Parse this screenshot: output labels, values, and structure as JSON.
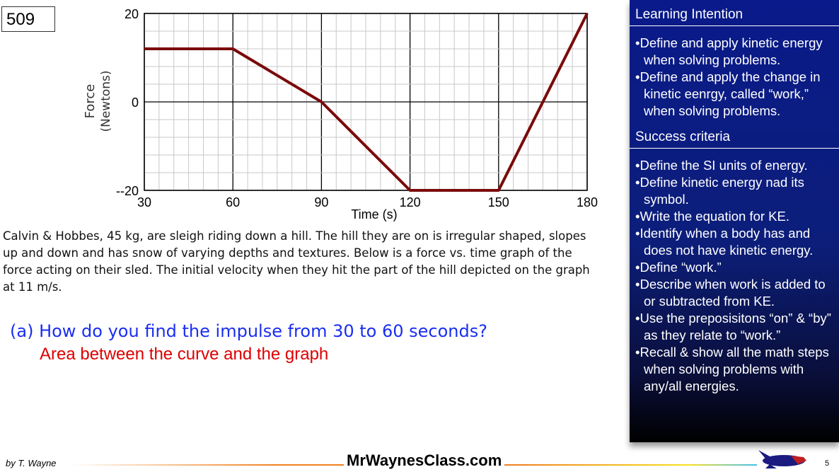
{
  "slide_number": "509",
  "chart_data": {
    "type": "line",
    "title": "",
    "xlabel": "Time (s)",
    "ylabel": "Force",
    "ylabel_sub": "(Newtons)",
    "xlim": [
      30,
      180
    ],
    "ylim": [
      -20,
      20
    ],
    "x_ticks": [
      30,
      60,
      90,
      120,
      150,
      180
    ],
    "y_tick_labels": [
      "20",
      "0",
      "--20"
    ],
    "y_ticks": [
      20,
      0,
      -20
    ],
    "grid": true,
    "line_color": "#7a0a0a",
    "x": [
      30,
      60,
      90,
      120,
      150,
      180
    ],
    "y": [
      12,
      12,
      0,
      -20,
      -20,
      20
    ]
  },
  "problem_text": "Calvin & Hobbes, 45 kg, are sleigh riding down a hill. The hill they are on is irregular shaped, slopes up and down and has snow of varying depths and textures. Below is a force vs. time graph of the force acting on their sled. The initial velocity when they hit the part of the hill depicted on the graph at 11 m/s.",
  "question": "(a)  How do you find the impulse from 30 to 60 seconds?",
  "answer": "Area between the curve and the graph",
  "panel": {
    "learning_title": "Learning Intention",
    "learning": [
      "Define and apply kinetic energy  when solving problems.",
      "Define and apply the change in kinetic eenrgy, called “work,” when solving problems."
    ],
    "success_title": "Success criteria",
    "success": [
      "Define the SI units of energy.",
      "Define kinetic energy nad its symbol.",
      "Write the equation for KE.",
      "Identify when a body has and does not have kinetic energy.",
      "Define “work.”",
      "Describe when work is added to or subtracted from KE.",
      "Use the preposisitons “on” & “by” as they relate to “work.”",
      "Recall & show all the math steps when solving problems with any/all energies."
    ]
  },
  "footer": {
    "author": "by T. Wayne",
    "site": "MrWaynesClass.com",
    "page": "5"
  }
}
